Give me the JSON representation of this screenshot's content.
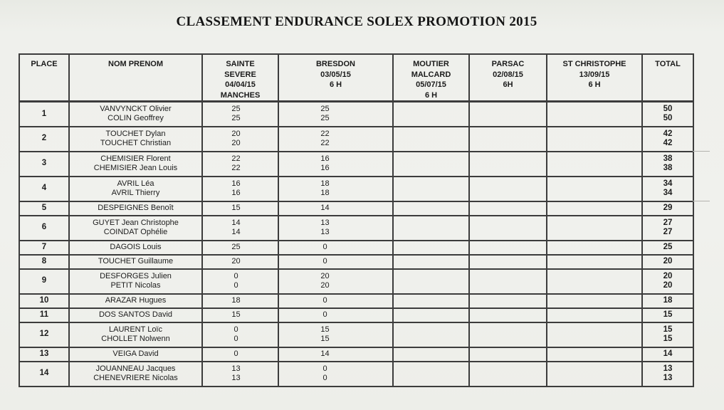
{
  "page": {
    "title": "CLASSEMENT ENDURANCE SOLEX PROMOTION 2015"
  },
  "table": {
    "columns": [
      {
        "id": "place",
        "lines": [
          "PLACE"
        ]
      },
      {
        "id": "names",
        "lines": [
          "NOM PRENOM"
        ]
      },
      {
        "id": "sainte_severe",
        "lines": [
          "SAINTE",
          "SEVERE",
          "04/04/15",
          "MANCHES"
        ]
      },
      {
        "id": "bresdon",
        "lines": [
          "BRESDON",
          "03/05/15",
          "6 H"
        ]
      },
      {
        "id": "moutier_malcard",
        "lines": [
          "MOUTIER",
          "MALCARD",
          "05/07/15",
          "6 H"
        ]
      },
      {
        "id": "parsac",
        "lines": [
          "PARSAC",
          "02/08/15",
          "6H"
        ]
      },
      {
        "id": "st_christophe",
        "lines": [
          "ST CHRISTOPHE",
          "13/09/15",
          "6 H"
        ]
      },
      {
        "id": "total",
        "lines": [
          "TOTAL"
        ]
      }
    ],
    "rows": [
      {
        "place": "1",
        "names": [
          "VANVYNCKT Olivier",
          "COLIN Geoffrey"
        ],
        "sainte_severe": [
          "25",
          "25"
        ],
        "bresdon": [
          "25",
          "25"
        ],
        "moutier_malcard": [],
        "parsac": [],
        "st_christophe": [],
        "total": [
          "50",
          "50"
        ]
      },
      {
        "place": "2",
        "names": [
          "TOUCHET Dylan",
          "TOUCHET Christian"
        ],
        "sainte_severe": [
          "20",
          "20"
        ],
        "bresdon": [
          "22",
          "22"
        ],
        "moutier_malcard": [],
        "parsac": [],
        "st_christophe": [],
        "total": [
          "42",
          "42"
        ]
      },
      {
        "place": "3",
        "names": [
          "CHEMISIER Florent",
          "CHEMISIER Jean Louis"
        ],
        "sainte_severe": [
          "22",
          "22"
        ],
        "bresdon": [
          "16",
          "16"
        ],
        "moutier_malcard": [],
        "parsac": [],
        "st_christophe": [],
        "total": [
          "38",
          "38"
        ]
      },
      {
        "place": "4",
        "names": [
          "AVRIL Léa",
          "AVRIL Thierry"
        ],
        "sainte_severe": [
          "16",
          "16"
        ],
        "bresdon": [
          "18",
          "18"
        ],
        "moutier_malcard": [],
        "parsac": [],
        "st_christophe": [],
        "total": [
          "34",
          "34"
        ]
      },
      {
        "place": "5",
        "names": [
          "DESPEIGNES Benoît"
        ],
        "sainte_severe": [
          "15"
        ],
        "bresdon": [
          "14"
        ],
        "moutier_malcard": [],
        "parsac": [],
        "st_christophe": [],
        "total": [
          "29"
        ]
      },
      {
        "place": "6",
        "names": [
          "GUYET Jean Christophe",
          "COINDAT Ophélie"
        ],
        "sainte_severe": [
          "14",
          "14"
        ],
        "bresdon": [
          "13",
          "13"
        ],
        "moutier_malcard": [],
        "parsac": [],
        "st_christophe": [],
        "total": [
          "27",
          "27"
        ]
      },
      {
        "place": "7",
        "names": [
          "DAGOIS Louis"
        ],
        "sainte_severe": [
          "25"
        ],
        "bresdon": [
          "0"
        ],
        "moutier_malcard": [],
        "parsac": [],
        "st_christophe": [],
        "total": [
          "25"
        ]
      },
      {
        "place": "8",
        "names": [
          "TOUCHET Guillaume"
        ],
        "sainte_severe": [
          "20"
        ],
        "bresdon": [
          "0"
        ],
        "moutier_malcard": [],
        "parsac": [],
        "st_christophe": [],
        "total": [
          "20"
        ]
      },
      {
        "place": "9",
        "names": [
          "DESFORGES Julien",
          "PETIT Nicolas"
        ],
        "sainte_severe": [
          "0",
          "0"
        ],
        "bresdon": [
          "20",
          "20"
        ],
        "moutier_malcard": [],
        "parsac": [],
        "st_christophe": [],
        "total": [
          "20",
          "20"
        ]
      },
      {
        "place": "10",
        "names": [
          "ARAZAR Hugues"
        ],
        "sainte_severe": [
          "18"
        ],
        "bresdon": [
          "0"
        ],
        "moutier_malcard": [],
        "parsac": [],
        "st_christophe": [],
        "total": [
          "18"
        ]
      },
      {
        "place": "11",
        "names": [
          "DOS SANTOS David"
        ],
        "sainte_severe": [
          "15"
        ],
        "bresdon": [
          "0"
        ],
        "moutier_malcard": [],
        "parsac": [],
        "st_christophe": [],
        "total": [
          "15"
        ]
      },
      {
        "place": "12",
        "names": [
          "LAURENT Loïc",
          "CHOLLET Nolwenn"
        ],
        "sainte_severe": [
          "0",
          "0"
        ],
        "bresdon": [
          "15",
          "15"
        ],
        "moutier_malcard": [],
        "parsac": [],
        "st_christophe": [],
        "total": [
          "15",
          "15"
        ]
      },
      {
        "place": "13",
        "names": [
          "VEIGA David"
        ],
        "sainte_severe": [
          "0"
        ],
        "bresdon": [
          "14"
        ],
        "moutier_malcard": [],
        "parsac": [],
        "st_christophe": [],
        "total": [
          "14"
        ]
      },
      {
        "place": "14",
        "names": [
          "JOUANNEAU Jacques",
          "CHENEVRIERE Nicolas"
        ],
        "sainte_severe": [
          "13",
          "13"
        ],
        "bresdon": [
          "0",
          "0"
        ],
        "moutier_malcard": [],
        "parsac": [],
        "st_christophe": [],
        "total": [
          "13",
          "13"
        ]
      }
    ]
  }
}
